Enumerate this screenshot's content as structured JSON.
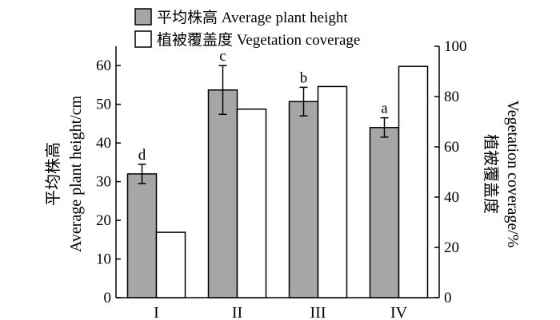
{
  "chart_data": {
    "type": "bar",
    "categories": [
      "I",
      "II",
      "III",
      "IV"
    ],
    "series": [
      {
        "name": "平均株高 Average plant height",
        "axis": "left",
        "color": "#a6a6a6",
        "values": [
          32.0,
          53.7,
          50.7,
          44.0
        ],
        "errors": [
          2.5,
          6.3,
          3.7,
          2.5
        ],
        "labels": [
          "d",
          "c",
          "b",
          "a"
        ]
      },
      {
        "name": "植被覆盖度 Vegetation coverage",
        "axis": "right",
        "color": "#ffffff",
        "values": [
          26.0,
          75.0,
          84.0,
          92.0
        ]
      }
    ],
    "left_axis": {
      "label_line1": "平均株高",
      "label_line2": "Average plant height/cm",
      "min": 0,
      "max": 65,
      "ticks": [
        0,
        10,
        20,
        30,
        40,
        50,
        60
      ]
    },
    "right_axis": {
      "label_line1": "植被覆盖度",
      "label_line2": "Vegetation coverage/%",
      "min": 0,
      "max": 100,
      "ticks": [
        0,
        20,
        40,
        60,
        80,
        100
      ]
    },
    "grid": false,
    "legend_position": "top-left"
  }
}
